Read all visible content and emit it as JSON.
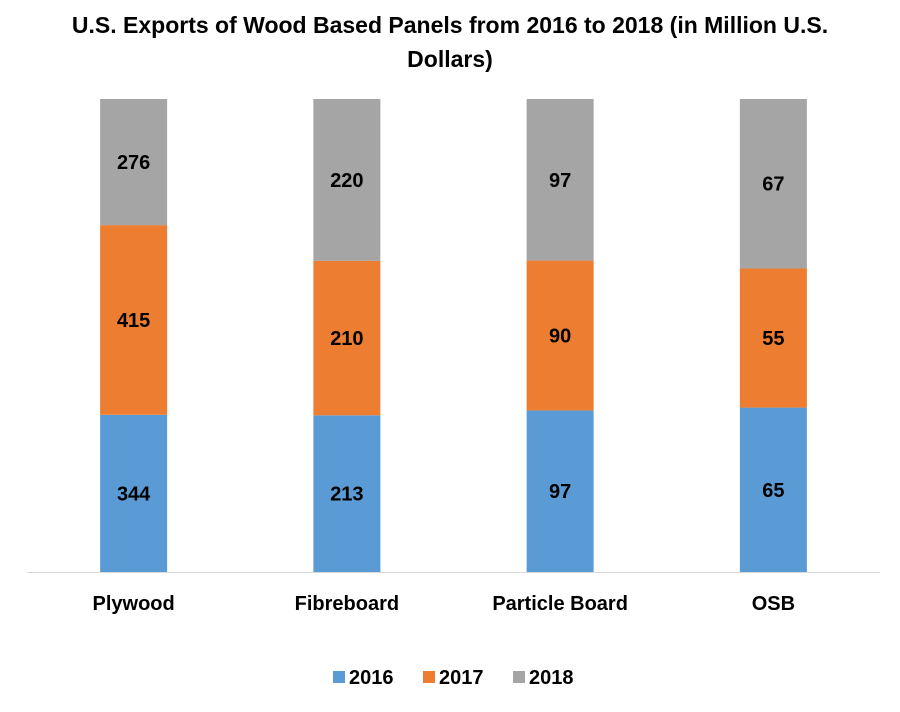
{
  "chart_data": {
    "type": "bar",
    "stacked": true,
    "title": "U.S. Exports of Wood Based Panels from 2016 to 2018 (in Million U.S. Dollars)",
    "xlabel": "",
    "ylabel": "",
    "categories": [
      "Plywood",
      "Fibreboard",
      "Particle Board",
      "OSB"
    ],
    "series": [
      {
        "name": "2016",
        "values": [
          344,
          213,
          97,
          65
        ],
        "color": "#5b9bd5"
      },
      {
        "name": "2017",
        "values": [
          415,
          210,
          90,
          55
        ],
        "color": "#ed7d31"
      },
      {
        "name": "2018",
        "values": [
          276,
          220,
          97,
          67
        ],
        "color": "#a5a5a5"
      }
    ],
    "normalized": true,
    "grid": false,
    "legend": "bottom"
  }
}
